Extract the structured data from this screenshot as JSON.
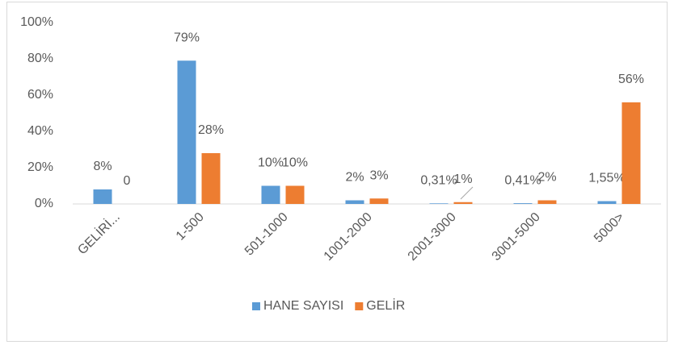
{
  "chart_data": {
    "type": "bar",
    "categories": [
      "GELİRİ...",
      "1-500",
      "501-1000",
      "1001-2000",
      "2001-3000",
      "3001-5000",
      "5000>"
    ],
    "series": [
      {
        "name": "HANE SAYISI",
        "color": "#5b9bd5",
        "values": [
          8,
          79,
          10,
          2,
          0.31,
          0.41,
          1.55
        ],
        "value_labels": [
          "8%",
          "79%",
          "10%",
          "2%",
          "0,31%",
          "0,41%",
          "1,55%"
        ]
      },
      {
        "name": "GELİR",
        "color": "#ed7d31",
        "values": [
          0,
          28,
          10,
          3,
          1,
          2,
          56
        ],
        "value_labels": [
          "0",
          "28%",
          "10%",
          "3%",
          "1%",
          "2%",
          "56%"
        ]
      }
    ],
    "ylim": [
      0,
      100
    ],
    "yticks": [
      {
        "value": 0,
        "label": "0%"
      },
      {
        "value": 20,
        "label": "20%"
      },
      {
        "value": 40,
        "label": "40%"
      },
      {
        "value": 60,
        "label": "60%"
      },
      {
        "value": 80,
        "label": "80%"
      },
      {
        "value": 100,
        "label": "100%"
      }
    ],
    "grid": false,
    "legend": "bottom"
  }
}
